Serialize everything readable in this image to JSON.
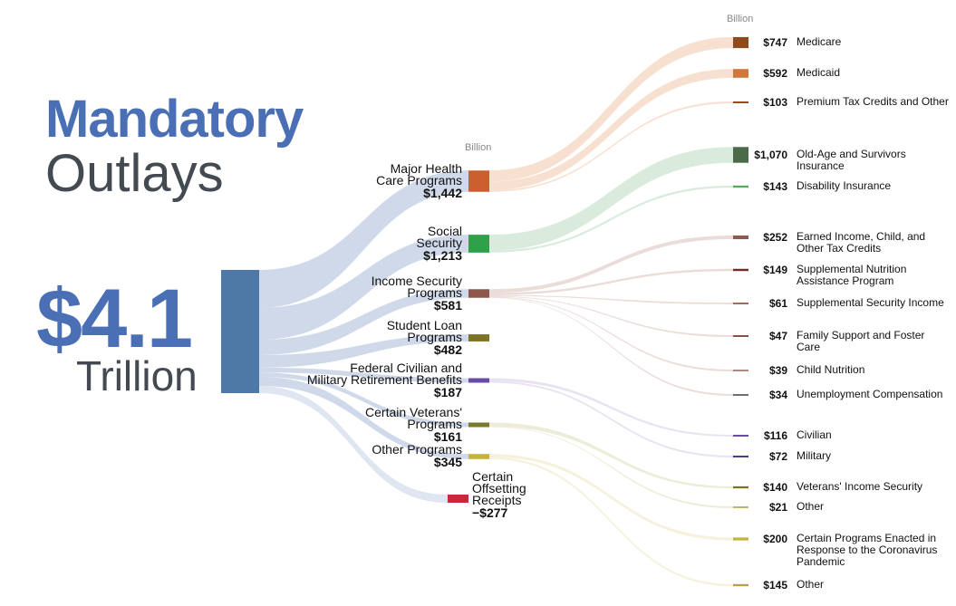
{
  "title": {
    "line1": "Mandatory",
    "line2": "Outlays"
  },
  "total": {
    "value": "$4.1",
    "unit": "Trillion"
  },
  "unit_mid": "Billion",
  "unit_right": "Billion",
  "chart_data": {
    "type": "sankey",
    "source": {
      "name": "",
      "value": 4100,
      "color": "#4e79a7"
    },
    "categories": [
      {
        "name_lines": [
          "Major Health",
          "Care Programs"
        ],
        "value_label": "$1,442",
        "value": 1442,
        "color": "#cc5e2f",
        "flow": "#f3c7ac",
        "children": [
          {
            "value_label": "$747",
            "value": 747,
            "name": "Medicare",
            "color": "#8f4b1e"
          },
          {
            "value_label": "$592",
            "value": 592,
            "name": "Medicaid",
            "color": "#d3763a"
          },
          {
            "value_label": "$103",
            "value": 103,
            "name": "Premium Tax Credits and Other",
            "color": "#a1461c"
          }
        ]
      },
      {
        "name_lines": [
          "Social",
          "Security"
        ],
        "value_label": "$1,213",
        "value": 1213,
        "color": "#2ea14a",
        "flow": "#b9dbbf",
        "children": [
          {
            "value_label": "$1,070",
            "value": 1070,
            "name": "Old-Age and Survivors Insurance",
            "color": "#4a6a49"
          },
          {
            "value_label": "$143",
            "value": 143,
            "name": "Disability Insurance",
            "color": "#59a862"
          }
        ]
      },
      {
        "name_lines": [
          "Income Security",
          "Programs"
        ],
        "value_label": "$581",
        "value": 581,
        "color": "#8c584c",
        "flow": "#d8bfb9",
        "children": [
          {
            "value_label": "$252",
            "value": 252,
            "name": "Earned Income, Child, and Other Tax Credits",
            "color": "#8b5a50"
          },
          {
            "value_label": "$149",
            "value": 149,
            "name": "Supplemental Nutrition Assistance Program",
            "color": "#6d2e28"
          },
          {
            "value_label": "$61",
            "value": 61,
            "name": "Supplemental Security Income",
            "color": "#a66a5d"
          },
          {
            "value_label": "$47",
            "value": 47,
            "name": "Family Support and Foster Care",
            "color": "#8a5046"
          },
          {
            "value_label": "$39",
            "value": 39,
            "name": "Child Nutrition",
            "color": "#b08a82"
          },
          {
            "value_label": "$34",
            "value": 34,
            "name": "Unemployment Compensation",
            "color": "#6e6e6e"
          }
        ]
      },
      {
        "name_lines": [
          "Student Loan",
          "Programs"
        ],
        "value_label": "$482",
        "value": 482,
        "color": "#7d7228",
        "flow": null,
        "children": []
      },
      {
        "name_lines": [
          "Federal Civilian and",
          "Military Retirement Benefits"
        ],
        "value_label": "$187",
        "value": 187,
        "color": "#6a4aa8",
        "flow": "#d6cbe6",
        "children": [
          {
            "value_label": "$116",
            "value": 116,
            "name": "Civilian",
            "color": "#6a4aa8"
          },
          {
            "value_label": "$72",
            "value": 72,
            "name": "Military",
            "color": "#4f3b84"
          }
        ]
      },
      {
        "name_lines": [
          "Certain Veterans'",
          "Programs"
        ],
        "value_label": "$161",
        "value": 161,
        "color": "#7a7a2a",
        "flow": "#dcdcb8",
        "children": [
          {
            "value_label": "$140",
            "value": 140,
            "name": "Veterans' Income Security",
            "color": "#7a7420"
          },
          {
            "value_label": "$21",
            "value": 21,
            "name": "Other",
            "color": "#b8b870"
          }
        ]
      },
      {
        "name_lines": [
          "Other Programs"
        ],
        "value_label": "$345",
        "value": 345,
        "color": "#c4b33c",
        "flow": "#ece5bf",
        "children": [
          {
            "value_label": "$200",
            "value": 200,
            "name": "Certain Programs Enacted in Response to the Coronavirus Pandemic",
            "color": "#c4b33c"
          },
          {
            "value_label": "$145",
            "value": 145,
            "name": "Other",
            "color": "#b8a050"
          }
        ]
      }
    ],
    "offsetting": {
      "name_lines": [
        "Certain",
        "Offsetting",
        "Receipts"
      ],
      "value_label": "−$277",
      "value": -277,
      "color": "#c8283a"
    }
  }
}
